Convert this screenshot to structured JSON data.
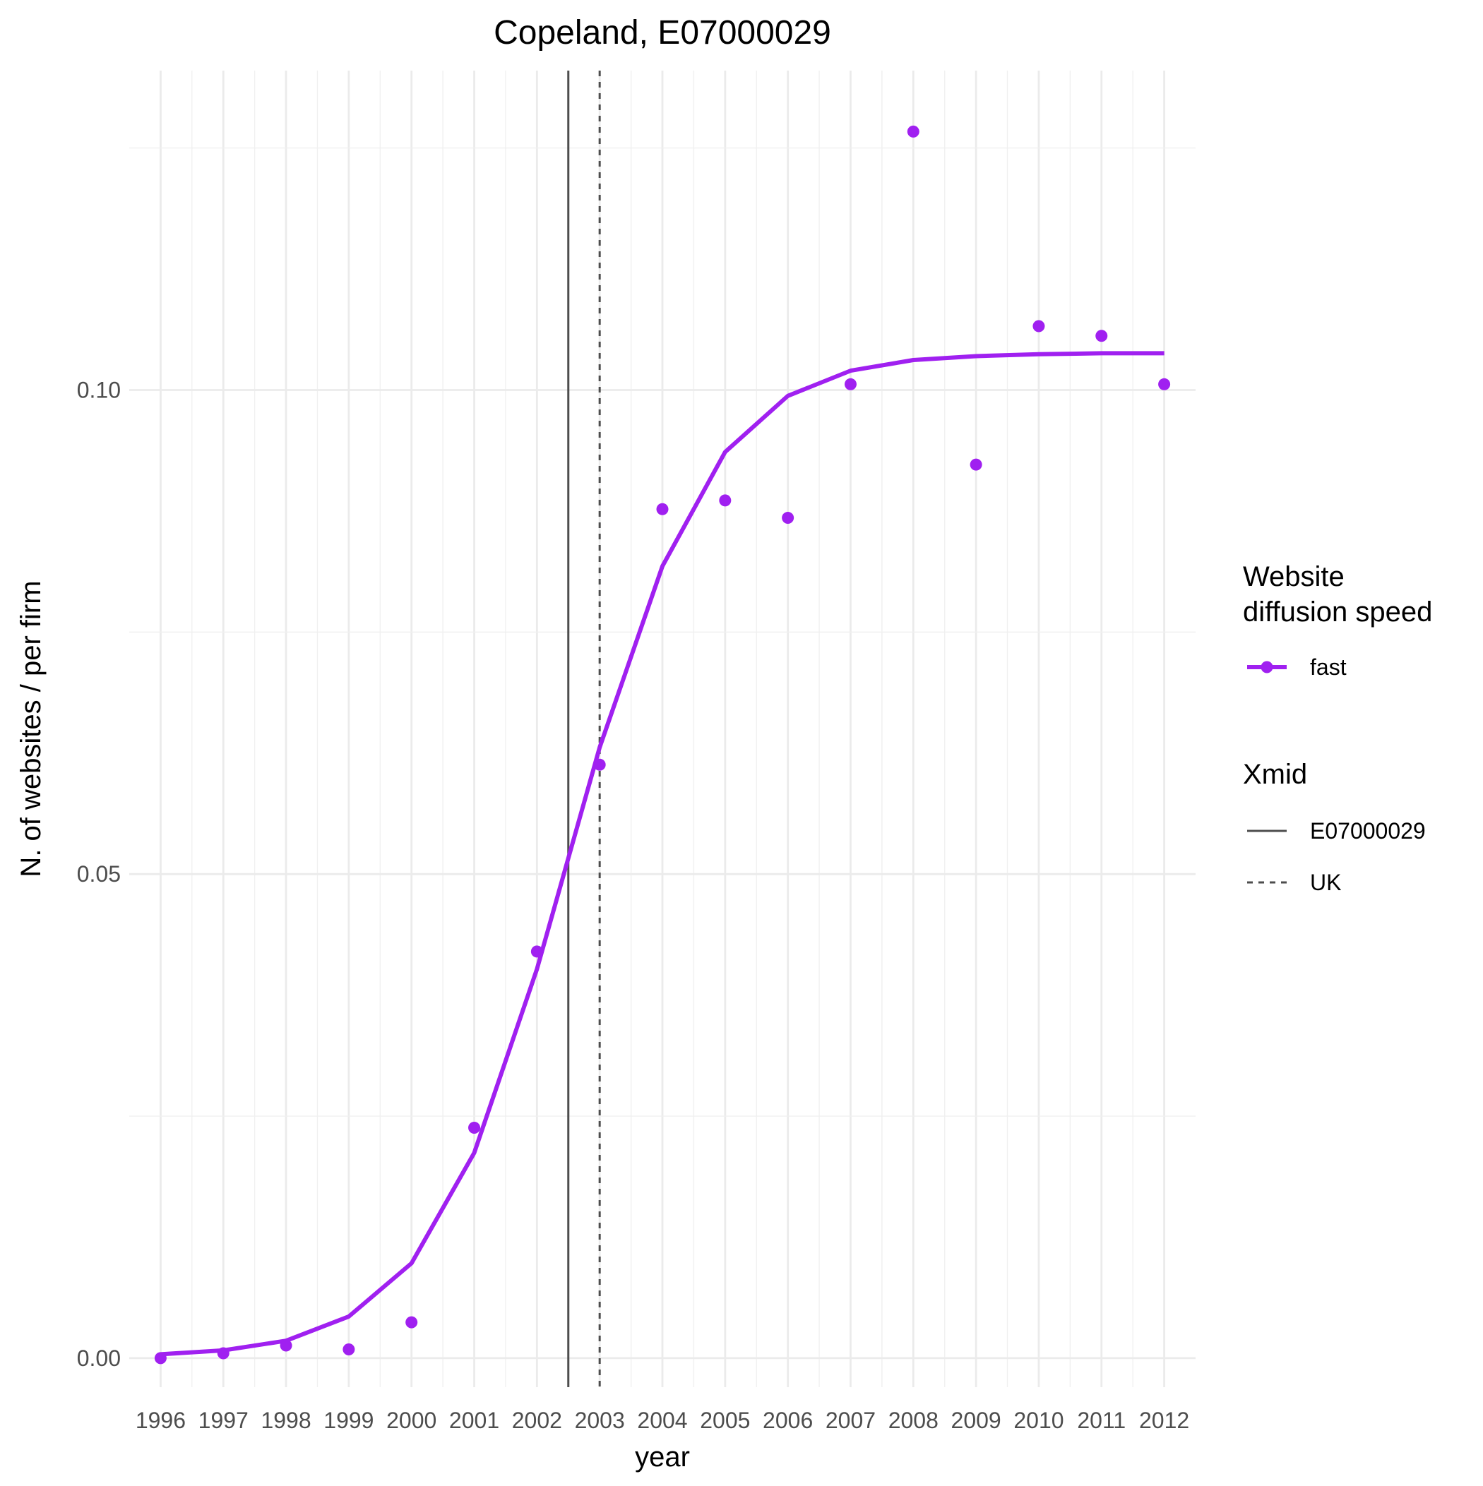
{
  "chart_data": {
    "type": "line",
    "title": "Copeland, E07000029",
    "xlabel": "year",
    "ylabel": "N. of websites / per firm",
    "x": [
      1996,
      1997,
      1998,
      1999,
      2000,
      2001,
      2002,
      2003,
      2004,
      2005,
      2006,
      2007,
      2008,
      2009,
      2010,
      2011,
      2012
    ],
    "xlim": [
      1995.5,
      2012.5
    ],
    "ylim": [
      -0.003,
      0.133
    ],
    "y_ticks": [
      0.0,
      0.05,
      0.1
    ],
    "y_tick_labels": [
      "0.00",
      "0.05",
      "0.10"
    ],
    "grid": true,
    "series": [
      {
        "name": "fast",
        "color": "#A020F0",
        "points": [
          0.0,
          0.0005,
          0.0013,
          0.0009,
          0.0037,
          0.0238,
          0.042,
          0.0613,
          0.0877,
          0.0886,
          0.0868,
          0.1006,
          0.1267,
          0.0923,
          0.1066,
          0.1056,
          0.1006
        ],
        "fit": [
          0.0004,
          0.0008,
          0.0018,
          0.0043,
          0.0098,
          0.0212,
          0.0402,
          0.0631,
          0.0818,
          0.0936,
          0.0994,
          0.102,
          0.1031,
          0.1035,
          0.1037,
          0.1038,
          0.1038
        ]
      }
    ],
    "vlines": [
      {
        "name": "E07000029",
        "x": 2002.5,
        "style": "solid",
        "color": "#4d4d4d"
      },
      {
        "name": "UK",
        "x": 2003.0,
        "style": "dashed",
        "color": "#4d4d4d"
      }
    ],
    "legends": [
      {
        "title": "Website\ndiffusion speed",
        "title_lines": [
          "Website",
          "diffusion speed"
        ],
        "entries": [
          {
            "label": "fast",
            "kind": "line-point",
            "color": "#A020F0"
          }
        ]
      },
      {
        "title": "Xmid",
        "title_lines": [
          "Xmid"
        ],
        "entries": [
          {
            "label": "E07000029",
            "kind": "solid"
          },
          {
            "label": "UK",
            "kind": "dashed"
          }
        ]
      }
    ],
    "legend_position": "right"
  }
}
